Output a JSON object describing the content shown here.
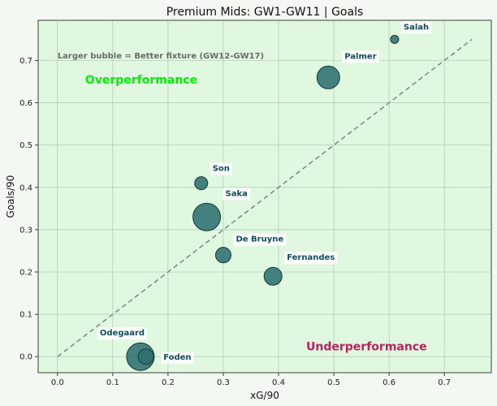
{
  "chart_data": {
    "type": "scatter",
    "title": "Premium Mids: GW1-GW11 | Goals",
    "xlabel": "xG/90",
    "ylabel": "Goals/90",
    "xlim": [
      -0.035,
      0.785
    ],
    "ylim": [
      -0.038,
      0.795
    ],
    "xticks": [
      0.0,
      0.1,
      0.2,
      0.3,
      0.4,
      0.5,
      0.6,
      0.7
    ],
    "yticks": [
      0.0,
      0.1,
      0.2,
      0.3,
      0.4,
      0.5,
      0.6,
      0.7
    ],
    "grid": true,
    "annotations": {
      "note": "Larger bubble = Better fixture (GW12-GW17)",
      "over": "Overperformance",
      "under": "Underperformance"
    },
    "reference_line": {
      "style": "dashed",
      "x": [
        0,
        0.75
      ],
      "y": [
        0,
        0.75
      ]
    },
    "points": [
      {
        "name": "Salah",
        "x": 0.61,
        "y": 0.75,
        "size": 5
      },
      {
        "name": "Palmer",
        "x": 0.49,
        "y": 0.66,
        "size": 14
      },
      {
        "name": "Son",
        "x": 0.26,
        "y": 0.41,
        "size": 8
      },
      {
        "name": "Saka",
        "x": 0.27,
        "y": 0.33,
        "size": 17
      },
      {
        "name": "De Bruyne",
        "x": 0.3,
        "y": 0.24,
        "size": 9.5
      },
      {
        "name": "Fernandes",
        "x": 0.39,
        "y": 0.19,
        "size": 11
      },
      {
        "name": "Odegaard",
        "x": 0.15,
        "y": 0.0,
        "size": 17
      },
      {
        "name": "Foden",
        "x": 0.16,
        "y": 0.0,
        "size": 9.5
      }
    ],
    "colors": {
      "background": "#e0f7e0",
      "point": "#2e6f6f",
      "point_edge": "#163838"
    }
  }
}
